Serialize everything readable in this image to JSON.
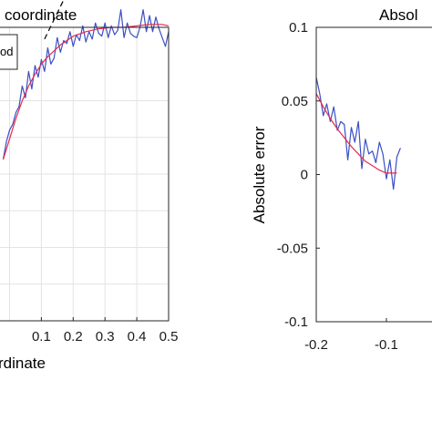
{
  "chart_data": [
    {
      "type": "line",
      "title": "coordinate",
      "xlabel": "rdinate",
      "ylabel": "",
      "xlim": [
        -0.03,
        0.5
      ],
      "ylim": [
        -0.1,
        0.1
      ],
      "x_ticks": [
        "0.1",
        "0.2",
        "0.3",
        "0.4",
        "0.5"
      ],
      "grid": true,
      "legend_entry": "od",
      "series": [
        {
          "color": "#3b4fc4",
          "x": [
            -0.02,
            -0.01,
            0.0,
            0.01,
            0.02,
            0.03,
            0.04,
            0.05,
            0.06,
            0.07,
            0.08,
            0.09,
            0.1,
            0.11,
            0.12,
            0.13,
            0.14,
            0.15,
            0.16,
            0.17,
            0.18,
            0.19,
            0.2,
            0.21,
            0.22,
            0.23,
            0.24,
            0.25,
            0.26,
            0.27,
            0.28,
            0.29,
            0.3,
            0.31,
            0.32,
            0.33,
            0.34,
            0.35,
            0.36,
            0.37,
            0.38,
            0.39,
            0.4,
            0.41,
            0.42,
            0.43,
            0.44,
            0.45,
            0.46,
            0.47,
            0.48,
            0.49,
            0.5
          ],
          "y": [
            0.01,
            0.022,
            0.03,
            0.034,
            0.042,
            0.046,
            0.06,
            0.052,
            0.07,
            0.058,
            0.074,
            0.066,
            0.078,
            0.07,
            0.086,
            0.075,
            0.079,
            0.093,
            0.083,
            0.091,
            0.089,
            0.097,
            0.087,
            0.095,
            0.091,
            0.101,
            0.09,
            0.097,
            0.092,
            0.103,
            0.096,
            0.094,
            0.103,
            0.093,
            0.101,
            0.095,
            0.098,
            0.112,
            0.093,
            0.103,
            0.096,
            0.094,
            0.093,
            0.1,
            0.112,
            0.097,
            0.108,
            0.097,
            0.107,
            0.099,
            0.093,
            0.087,
            0.097
          ]
        },
        {
          "color": "#e8294b",
          "x": [
            -0.02,
            0.0,
            0.02,
            0.04,
            0.06,
            0.08,
            0.1,
            0.12,
            0.14,
            0.16,
            0.18,
            0.2,
            0.24,
            0.28,
            0.32,
            0.36,
            0.4,
            0.44,
            0.48,
            0.5
          ],
          "y": [
            0.01,
            0.024,
            0.038,
            0.05,
            0.06,
            0.068,
            0.075,
            0.08,
            0.084,
            0.088,
            0.091,
            0.094,
            0.097,
            0.099,
            0.1,
            0.1,
            0.101,
            0.102,
            0.102,
            0.101
          ]
        },
        {
          "color": "#000000",
          "dash": true,
          "x": [
            0.11,
            0.2
          ],
          "y": [
            0.092,
            0.132
          ]
        }
      ]
    },
    {
      "type": "line",
      "title": "Absol",
      "xlabel": "",
      "ylabel": "Absolute error",
      "xlim": [
        -0.2,
        -0.035
      ],
      "ylim": [
        -0.1,
        0.1
      ],
      "x_ticks": [
        "-0.2",
        "-0.1"
      ],
      "y_ticks": [
        "0.1",
        "0.05",
        "0",
        "-0.05",
        "-0.1"
      ],
      "grid": false,
      "series": [
        {
          "color": "#3b4fc4",
          "x": [
            -0.2,
            -0.195,
            -0.19,
            -0.185,
            -0.18,
            -0.175,
            -0.17,
            -0.165,
            -0.16,
            -0.155,
            -0.15,
            -0.145,
            -0.14,
            -0.135,
            -0.13,
            -0.125,
            -0.12,
            -0.115,
            -0.11,
            -0.105,
            -0.1,
            -0.095,
            -0.09,
            -0.085,
            -0.08
          ],
          "y": [
            0.066,
            0.055,
            0.04,
            0.048,
            0.036,
            0.046,
            0.03,
            0.036,
            0.034,
            0.01,
            0.032,
            0.022,
            0.036,
            0.004,
            0.024,
            0.014,
            0.016,
            0.008,
            0.022,
            0.014,
            -0.003,
            0.01,
            -0.01,
            0.012,
            0.018
          ]
        },
        {
          "color": "#e8294b",
          "x": [
            -0.2,
            -0.19,
            -0.18,
            -0.17,
            -0.16,
            -0.15,
            -0.14,
            -0.13,
            -0.12,
            -0.11,
            -0.1,
            -0.09,
            -0.085
          ],
          "y": [
            0.055,
            0.046,
            0.038,
            0.031,
            0.025,
            0.019,
            0.014,
            0.009,
            0.006,
            0.003,
            0.001,
            0.001,
            0.001
          ]
        }
      ]
    }
  ]
}
